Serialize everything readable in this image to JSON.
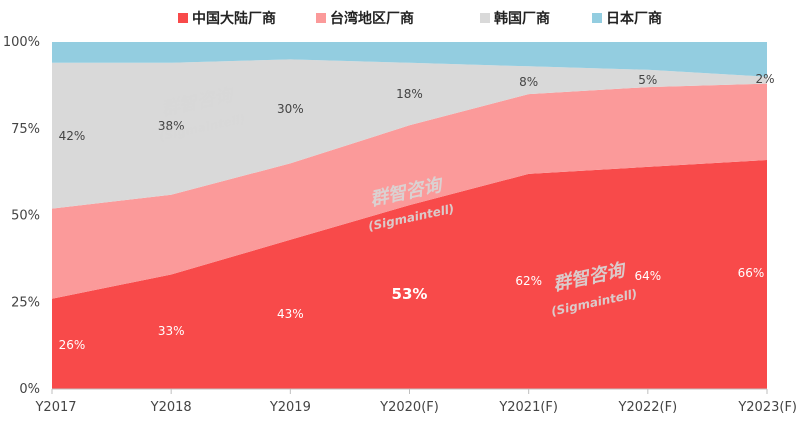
{
  "chart_data": {
    "type": "area",
    "stacked": true,
    "normalized": true,
    "categories": [
      "Y2017",
      "Y2018",
      "Y2019",
      "Y2020(F)",
      "Y2021(F)",
      "Y2022(F)",
      "Y2023(F)"
    ],
    "series": [
      {
        "name": "中国大陆厂商",
        "color": "#f84a4a",
        "values": [
          26,
          33,
          43,
          53,
          62,
          64,
          66
        ]
      },
      {
        "name": "台湾地区厂商",
        "color": "#fb9a9a",
        "values": [
          26,
          23,
          22,
          23,
          23,
          23,
          22
        ]
      },
      {
        "name": "韩国厂商",
        "color": "#d9d9d9",
        "values": [
          42,
          38,
          30,
          18,
          8,
          5,
          2
        ]
      },
      {
        "name": "日本厂商",
        "color": "#93cde0",
        "values": [
          6,
          6,
          5,
          6,
          7,
          8,
          10
        ]
      }
    ],
    "data_labels": {
      "china": [
        "26%",
        "33%",
        "43%",
        "53%",
        "62%",
        "64%",
        "66%"
      ],
      "korea": [
        "42%",
        "38%",
        "30%",
        "18%",
        "8%",
        "5%",
        "2%"
      ]
    },
    "y_ticks": [
      "0%",
      "25%",
      "50%",
      "75%",
      "100%"
    ],
    "ylim": [
      0,
      100
    ],
    "legend_position": "top",
    "grid": false,
    "watermark": {
      "brand": "群智咨询",
      "handle": "(Sigmaintell)"
    }
  }
}
